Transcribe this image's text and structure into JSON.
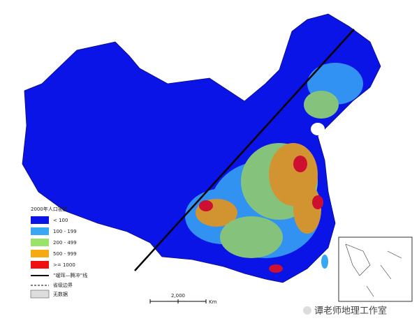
{
  "legend": {
    "title": "2000年人口密度",
    "items": [
      {
        "label": "< 100",
        "color": "#0a14e6"
      },
      {
        "label": "100 - 199",
        "color": "#38a8f5"
      },
      {
        "label": "200 - 499",
        "color": "#9be26a"
      },
      {
        "label": "500 - 999",
        "color": "#f5aa12"
      },
      {
        "label": ">= 1000",
        "color": "#f01010"
      }
    ],
    "line_label": "“瑷珲—腾冲”线",
    "border_label": "省级边界",
    "nodata_label": "无数据"
  },
  "scale": {
    "distance": "2,000",
    "unit": "Km"
  },
  "watermark": "谭老师地理工作室"
}
